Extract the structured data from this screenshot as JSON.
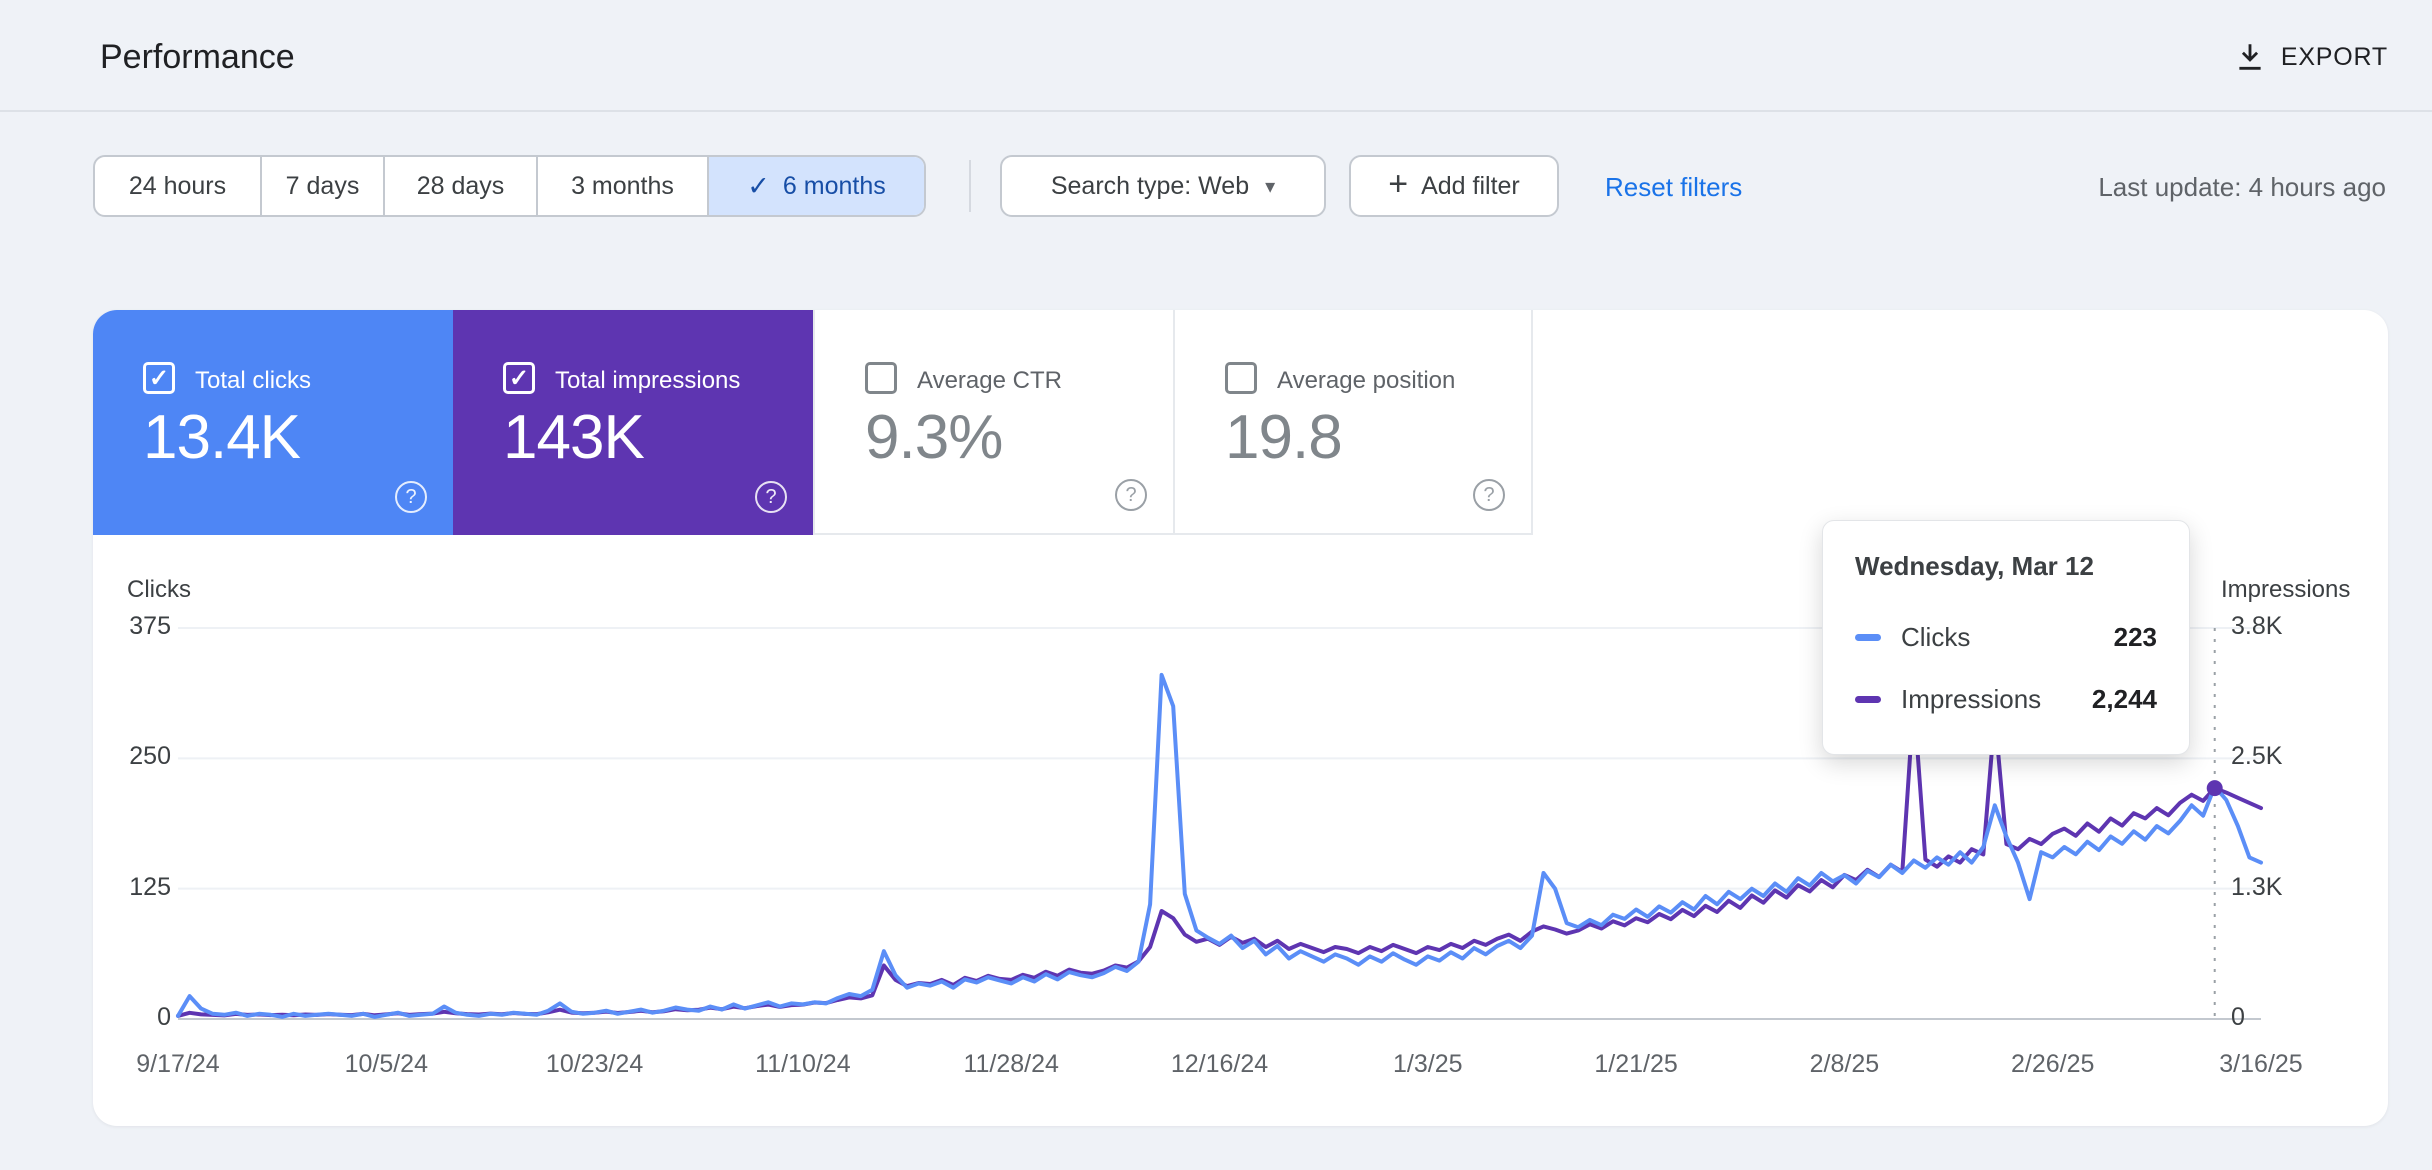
{
  "header": {
    "title": "Performance",
    "export_label": "EXPORT"
  },
  "glyphs": {
    "check": "✓",
    "caret": "▾",
    "plus": "+",
    "help": "?"
  },
  "filters": {
    "ranges": [
      {
        "label": "24 hours",
        "selected": false
      },
      {
        "label": "7 days",
        "selected": false
      },
      {
        "label": "28 days",
        "selected": false
      },
      {
        "label": "3 months",
        "selected": false
      },
      {
        "label": "6 months",
        "selected": true
      }
    ],
    "search_type": "Search type: Web",
    "add_filter": "Add filter",
    "reset": "Reset filters",
    "last_update": "Last update: 4 hours ago"
  },
  "colors": {
    "clicks_tile": "#4e86f5",
    "impressions_tile": "#5e35b1",
    "clicks_line": "#5b8ef7",
    "impressions_line": "#5e35b1",
    "link_blue": "#1a73e8",
    "selected_chip_bg": "#d3e3fd"
  },
  "metrics": [
    {
      "label": "Total clicks",
      "value": "13.4K",
      "checked": true,
      "bg": "#4e86f5"
    },
    {
      "label": "Total impressions",
      "value": "143K",
      "checked": true,
      "bg": "#5e35b1"
    },
    {
      "label": "Average CTR",
      "value": "9.3%",
      "checked": false,
      "bg": ""
    },
    {
      "label": "Average position",
      "value": "19.8",
      "checked": false,
      "bg": ""
    }
  ],
  "tooltip": {
    "title": "Wednesday, Mar 12",
    "rows": [
      {
        "label": "Clicks",
        "value": "223",
        "color": "#5b8ef7"
      },
      {
        "label": "Impressions",
        "value": "2,244",
        "color": "#5e35b1"
      }
    ]
  },
  "chart_data": {
    "type": "line",
    "title": "Clicks and Impressions over 6 months",
    "days_total": 180,
    "x_labels": [
      "9/17/24",
      "10/5/24",
      "10/23/24",
      "11/10/24",
      "11/28/24",
      "12/16/24",
      "1/3/25",
      "1/21/25",
      "2/8/25",
      "2/26/25",
      "3/16/25"
    ],
    "x_label_days": [
      0,
      18,
      36,
      54,
      72,
      90,
      108,
      126,
      144,
      162,
      180
    ],
    "left_axis": {
      "title": "Clicks",
      "ylim": [
        0,
        375
      ],
      "tick_labels": [
        "0",
        "125",
        "250",
        "375"
      ]
    },
    "right_axis": {
      "title": "Impressions",
      "ylim": [
        0,
        3800
      ],
      "tick_labels": [
        "0",
        "1.3K",
        "2.5K",
        "3.8K"
      ]
    },
    "grid": true,
    "legend_position": "none",
    "series": [
      {
        "name": "Clicks",
        "axis": "left",
        "color": "#5b8ef7",
        "values": [
          3,
          22,
          10,
          5,
          4,
          6,
          3,
          5,
          4,
          2,
          5,
          3,
          4,
          5,
          4,
          3,
          5,
          2,
          4,
          6,
          3,
          4,
          5,
          12,
          6,
          4,
          3,
          5,
          4,
          6,
          5,
          4,
          8,
          15,
          7,
          5,
          6,
          8,
          5,
          7,
          9,
          6,
          8,
          11,
          9,
          8,
          12,
          9,
          14,
          10,
          13,
          16,
          12,
          15,
          14,
          16,
          15,
          20,
          24,
          22,
          28,
          65,
          42,
          30,
          34,
          32,
          36,
          30,
          38,
          35,
          40,
          37,
          34,
          40,
          36,
          43,
          38,
          45,
          42,
          40,
          44,
          50,
          46,
          55,
          110,
          330,
          300,
          120,
          85,
          78,
          72,
          80,
          68,
          75,
          62,
          70,
          58,
          65,
          60,
          55,
          62,
          58,
          52,
          60,
          55,
          63,
          57,
          52,
          60,
          56,
          64,
          58,
          68,
          62,
          70,
          75,
          68,
          80,
          140,
          125,
          92,
          88,
          95,
          90,
          100,
          96,
          105,
          98,
          108,
          102,
          112,
          105,
          118,
          110,
          122,
          115,
          125,
          118,
          130,
          122,
          135,
          128,
          140,
          132,
          138,
          130,
          142,
          136,
          148,
          140,
          152,
          145,
          155,
          148,
          160,
          150,
          165,
          205,
          175,
          150,
          115,
          160,
          155,
          165,
          158,
          170,
          162,
          175,
          168,
          180,
          172,
          185,
          178,
          190,
          205,
          195,
          223,
          210,
          185,
          155,
          150
        ]
      },
      {
        "name": "Impressions",
        "axis": "right",
        "color": "#5e35b1",
        "values": [
          30,
          60,
          45,
          40,
          35,
          50,
          40,
          45,
          38,
          42,
          36,
          44,
          40,
          48,
          42,
          38,
          50,
          36,
          45,
          55,
          40,
          48,
          52,
          70,
          55,
          48,
          44,
          52,
          46,
          58,
          50,
          48,
          65,
          90,
          62,
          55,
          60,
          72,
          58,
          68,
          80,
          66,
          75,
          95,
          85,
          90,
          110,
          95,
          120,
          105,
          125,
          140,
          118,
          135,
          140,
          160,
          155,
          185,
          210,
          200,
          230,
          520,
          380,
          320,
          350,
          340,
          380,
          330,
          400,
          370,
          420,
          390,
          380,
          430,
          400,
          460,
          420,
          480,
          450,
          440,
          470,
          520,
          500,
          560,
          700,
          1050,
          980,
          820,
          750,
          780,
          720,
          800,
          740,
          780,
          700,
          760,
          680,
          730,
          690,
          650,
          700,
          680,
          640,
          700,
          660,
          720,
          680,
          640,
          700,
          670,
          730,
          690,
          760,
          720,
          780,
          820,
          760,
          850,
          900,
          870,
          830,
          860,
          920,
          880,
          950,
          910,
          980,
          940,
          1020,
          970,
          1060,
          1000,
          1100,
          1040,
          1150,
          1080,
          1200,
          1130,
          1250,
          1180,
          1300,
          1240,
          1350,
          1280,
          1400,
          1350,
          1450,
          1380,
          1500,
          1430,
          3100,
          1550,
          1480,
          1580,
          1520,
          1650,
          1600,
          2950,
          1700,
          1650,
          1750,
          1700,
          1800,
          1850,
          1780,
          1900,
          1820,
          1950,
          1880,
          2000,
          1950,
          2050,
          1980,
          2100,
          2180,
          2120,
          2244,
          2200,
          2150,
          2100,
          2050
        ]
      }
    ],
    "hover": {
      "day": 176,
      "date_label": "Wednesday, Mar 12",
      "clicks": 223,
      "impressions": 2244
    }
  }
}
